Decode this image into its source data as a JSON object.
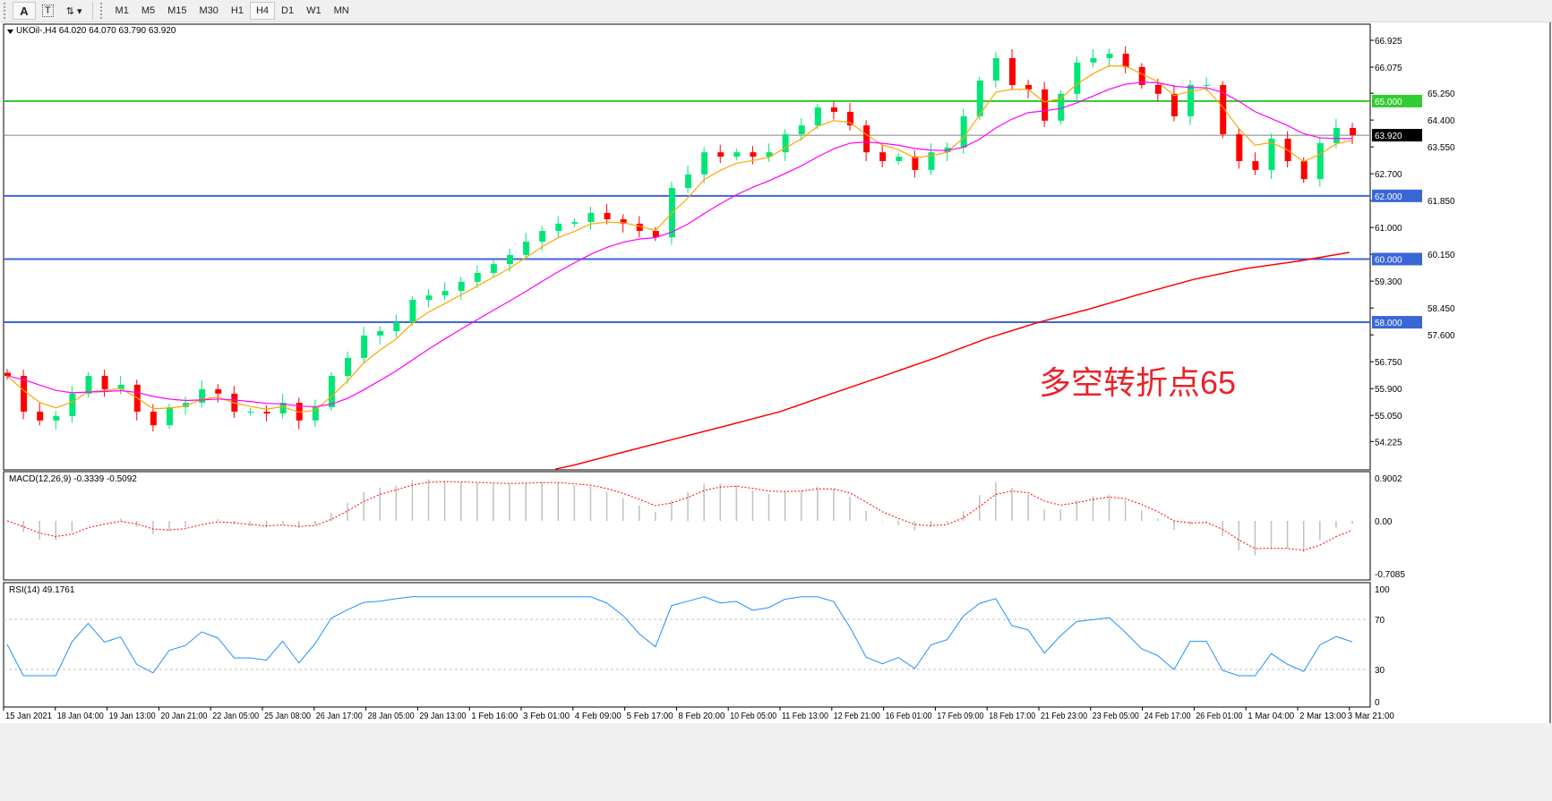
{
  "toolbar": {
    "items": [
      {
        "name": "font-a-button",
        "label": "A",
        "icon": "letter-a-icon"
      },
      {
        "name": "text-label-button",
        "label": "T",
        "icon": "text-box-icon"
      },
      {
        "name": "arrows-button",
        "label": "",
        "icon": "arrows-dropdown-icon"
      }
    ],
    "timeframes": [
      "M1",
      "M5",
      "M15",
      "M30",
      "H1",
      "H4",
      "D1",
      "W1",
      "MN"
    ],
    "active_timeframe": "H4"
  },
  "chart": {
    "header": "UKOil-,H4  64.020 64.070 63.790 63.920",
    "annotation": "多空转折点65",
    "colors": {
      "bull": "#00e676",
      "bear": "#ff0000",
      "ma_fast": "#ffa500",
      "ma_mid": "#ff00ff",
      "ma_long": "#ff0000",
      "green_line": "#33cc33",
      "blue_line": "#3a66d6",
      "macd_hist": "#c0c0c0",
      "macd_signal": "#ff0000",
      "rsi": "#1e90ff"
    },
    "levels": [
      {
        "value": "65.000",
        "color": "#33cc33"
      },
      {
        "value": "62.000",
        "color": "#3a66d6"
      },
      {
        "value": "60.000",
        "color": "#3a66d6"
      },
      {
        "value": "58.000",
        "color": "#3a66d6"
      }
    ],
    "current_price": "63.920"
  },
  "chart_data": {
    "type": "candlestick",
    "symbol": "UKOil-",
    "timeframe": "H4",
    "price_ticks": [
      "66.925",
      "66.075",
      "65.250",
      "64.400",
      "63.550",
      "62.700",
      "61.850",
      "61.000",
      "60.150",
      "59.300",
      "58.450",
      "57.600",
      "56.750",
      "55.900",
      "55.050",
      "54.225"
    ],
    "ylim": [
      53.4,
      67.4
    ],
    "time_labels": [
      "15 Jan 2021",
      "18 Jan 04:00",
      "19 Jan 13:00",
      "20 Jan 21:00",
      "22 Jan 05:00",
      "25 Jan 08:00",
      "26 Jan 17:00",
      "28 Jan 05:00",
      "29 Jan 13:00",
      "1 Feb 16:00",
      "3 Feb 01:00",
      "4 Feb 09:00",
      "5 Feb 17:00",
      "8 Feb 20:00",
      "10 Feb 05:00",
      "11 Feb 13:00",
      "12 Feb 21:00",
      "16 Feb 01:00",
      "17 Feb 09:00",
      "18 Feb 17:00",
      "21 Feb 23:00",
      "23 Feb 05:00",
      "24 Feb 17:00",
      "26 Feb 01:00",
      "1 Mar 04:00",
      "2 Mar 13:00",
      "3 Mar 21:00"
    ],
    "closes": [
      56.3,
      55.17,
      54.89,
      55.03,
      55.74,
      56.3,
      55.88,
      56.02,
      55.17,
      54.74,
      55.31,
      55.45,
      55.88,
      55.74,
      55.17,
      55.17,
      55.11,
      55.45,
      54.89,
      55.31,
      56.3,
      56.87,
      57.58,
      57.72,
      58.0,
      58.71,
      58.85,
      58.99,
      59.28,
      59.56,
      59.84,
      60.13,
      60.55,
      60.89,
      61.12,
      61.17,
      61.46,
      61.26,
      61.12,
      60.89,
      60.69,
      62.25,
      62.68,
      63.38,
      63.24,
      63.38,
      63.24,
      63.38,
      63.95,
      64.23,
      64.8,
      64.66,
      64.23,
      63.38,
      63.1,
      63.24,
      62.82,
      63.38,
      63.53,
      64.52,
      65.65,
      66.36,
      65.51,
      65.37,
      64.38,
      65.23,
      66.22,
      66.36,
      66.5,
      66.08,
      65.51,
      65.23,
      64.52,
      65.51,
      65.51,
      63.95,
      63.1,
      62.82,
      63.81,
      63.1,
      62.53,
      63.67,
      64.15,
      63.92
    ],
    "ma_long": [
      {
        "time": "4 Feb 09:00",
        "value": 53.47
      },
      {
        "time": "5 Feb 17:00",
        "value": 53.9
      },
      {
        "time": "8 Feb 20:00",
        "value": 54.32
      },
      {
        "time": "10 Feb 05:00",
        "value": 54.74
      },
      {
        "time": "11 Feb 13:00",
        "value": 55.17
      },
      {
        "time": "12 Feb 21:00",
        "value": 55.74
      },
      {
        "time": "16 Feb 01:00",
        "value": 56.3
      },
      {
        "time": "17 Feb 09:00",
        "value": 56.87
      },
      {
        "time": "18 Feb 17:00",
        "value": 57.49
      },
      {
        "time": "21 Feb 23:00",
        "value": 58.0
      },
      {
        "time": "23 Feb 05:00",
        "value": 58.43
      },
      {
        "time": "24 Feb 17:00",
        "value": 58.91
      },
      {
        "time": "26 Feb 01:00",
        "value": 59.36
      },
      {
        "time": "1 Mar 04:00",
        "value": 59.7
      },
      {
        "time": "2 Mar 13:00",
        "value": 59.93
      },
      {
        "time": "3 Mar 21:00",
        "value": 60.21
      }
    ],
    "macd": {
      "label": "MACD(12,26,9) -0.3339 -0.5092",
      "ticks": [
        "0.9002",
        "0.00",
        "-0.7085"
      ],
      "ylim": [
        -0.7085,
        0.9002
      ]
    },
    "rsi": {
      "label": "RSI(14) 49.1761",
      "ticks": [
        "100",
        "70",
        "30",
        "0"
      ],
      "ylim": [
        0,
        100
      ],
      "levels": [
        70,
        30
      ]
    }
  }
}
